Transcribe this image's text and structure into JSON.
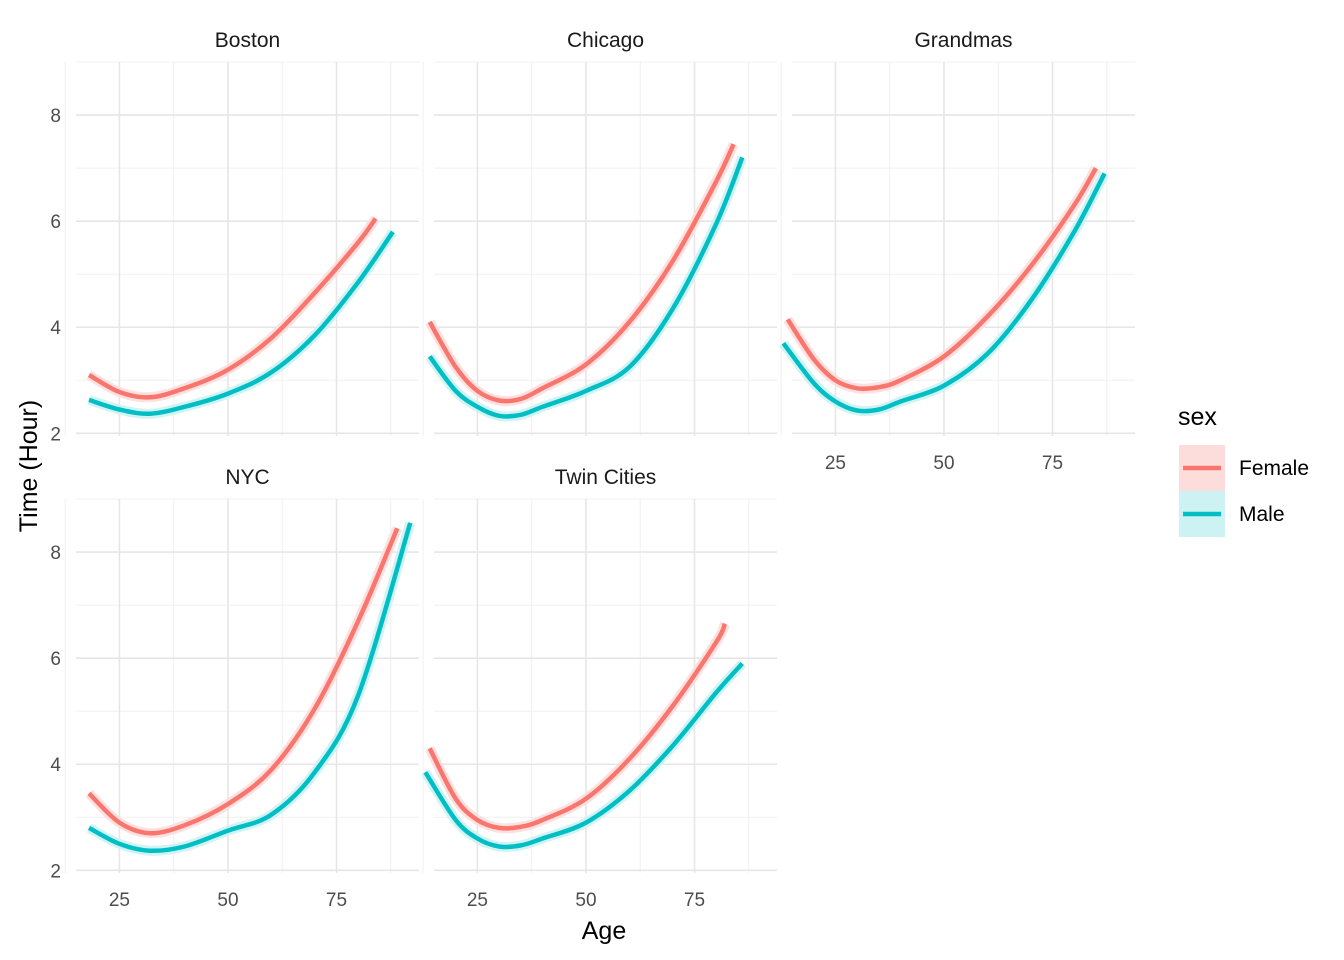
{
  "chart_data": {
    "type": "line",
    "xlabel": "Age",
    "ylabel": "Time (Hour)",
    "xlim": [
      15,
      94
    ],
    "ylim": [
      1.95,
      9.0
    ],
    "x_breaks": [
      25,
      50,
      75
    ],
    "y_breaks": [
      2,
      4,
      6,
      8
    ],
    "x_tick_labels": [
      "25",
      "50",
      "75"
    ],
    "y_tick_labels": [
      "2",
      "4",
      "6",
      "8"
    ],
    "grid": true,
    "legend": {
      "title": "sex",
      "position": "right",
      "entries": [
        {
          "label": "Female",
          "color": "#F8766D",
          "fill": "#FDDDDB"
        },
        {
          "label": "Male",
          "color": "#00BFC4",
          "fill": "#CCF2F3"
        }
      ]
    },
    "facets": [
      {
        "name": "Boston",
        "series": [
          {
            "name": "Female",
            "x": [
              18,
              25,
              32,
              40,
              50,
              60,
              70,
              80,
              84
            ],
            "y": [
              3.1,
              2.78,
              2.68,
              2.85,
              3.2,
              3.8,
              4.65,
              5.6,
              6.05
            ]
          },
          {
            "name": "Male",
            "x": [
              18,
              25,
              32,
              40,
              50,
              60,
              70,
              80,
              88
            ],
            "y": [
              2.63,
              2.45,
              2.37,
              2.5,
              2.75,
              3.15,
              3.85,
              4.85,
              5.8
            ]
          }
        ]
      },
      {
        "name": "Chicago",
        "series": [
          {
            "name": "Female",
            "x": [
              14,
              20,
              25,
              30,
              35,
              40,
              50,
              60,
              70,
              80,
              84
            ],
            "y": [
              4.1,
              3.25,
              2.8,
              2.62,
              2.65,
              2.85,
              3.3,
              4.1,
              5.25,
              6.75,
              7.45
            ]
          },
          {
            "name": "Male",
            "x": [
              14,
              20,
              25,
              30,
              35,
              40,
              50,
              60,
              70,
              80,
              86
            ],
            "y": [
              3.45,
              2.8,
              2.5,
              2.33,
              2.35,
              2.5,
              2.8,
              3.25,
              4.35,
              5.95,
              7.2
            ]
          }
        ]
      },
      {
        "name": "Grandmas",
        "series": [
          {
            "name": "Female",
            "x": [
              14,
              20,
              25,
              30,
              35,
              40,
              50,
              60,
              70,
              80,
              85
            ],
            "y": [
              4.15,
              3.4,
              3.0,
              2.85,
              2.87,
              3.0,
              3.45,
              4.2,
              5.15,
              6.3,
              7.0
            ]
          },
          {
            "name": "Male",
            "x": [
              13,
              20,
              25,
              30,
              35,
              40,
              50,
              60,
              70,
              80,
              87
            ],
            "y": [
              3.7,
              2.95,
              2.6,
              2.43,
              2.45,
              2.6,
              2.9,
              3.5,
              4.5,
              5.8,
              6.9
            ]
          }
        ]
      },
      {
        "name": "NYC",
        "series": [
          {
            "name": "Female",
            "x": [
              18,
              25,
              32,
              40,
              50,
              60,
              70,
              80,
              89
            ],
            "y": [
              3.45,
              2.9,
              2.7,
              2.85,
              3.25,
              3.9,
              5.05,
              6.7,
              8.45
            ]
          },
          {
            "name": "Male",
            "x": [
              18,
              25,
              32,
              40,
              50,
              60,
              70,
              80,
              92
            ],
            "y": [
              2.8,
              2.5,
              2.37,
              2.45,
              2.75,
              3.05,
              3.85,
              5.3,
              8.55
            ]
          }
        ]
      },
      {
        "name": "Twin Cities",
        "series": [
          {
            "name": "Female",
            "x": [
              14,
              20,
              25,
              30,
              35,
              40,
              50,
              60,
              70,
              80,
              82
            ],
            "y": [
              4.3,
              3.35,
              2.95,
              2.8,
              2.82,
              2.95,
              3.35,
              4.1,
              5.1,
              6.3,
              6.65
            ]
          },
          {
            "name": "Male",
            "x": [
              13,
              20,
              25,
              30,
              35,
              40,
              50,
              60,
              70,
              80,
              86
            ],
            "y": [
              3.85,
              2.95,
              2.6,
              2.45,
              2.47,
              2.6,
              2.9,
              3.5,
              4.35,
              5.35,
              5.9
            ]
          }
        ]
      }
    ]
  }
}
